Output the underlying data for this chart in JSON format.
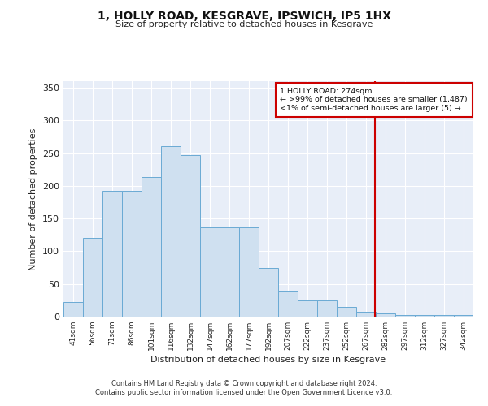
{
  "title": "1, HOLLY ROAD, KESGRAVE, IPSWICH, IP5 1HX",
  "subtitle": "Size of property relative to detached houses in Kesgrave",
  "xlabel": "Distribution of detached houses by size in Kesgrave",
  "ylabel": "Number of detached properties",
  "bar_labels": [
    "41sqm",
    "56sqm",
    "71sqm",
    "86sqm",
    "101sqm",
    "116sqm",
    "132sqm",
    "147sqm",
    "162sqm",
    "177sqm",
    "192sqm",
    "207sqm",
    "222sqm",
    "237sqm",
    "252sqm",
    "267sqm",
    "282sqm",
    "297sqm",
    "312sqm",
    "327sqm",
    "342sqm"
  ],
  "bar_values": [
    22,
    120,
    193,
    193,
    213,
    261,
    247,
    136,
    136,
    136,
    75,
    40,
    25,
    25,
    15,
    8,
    5,
    3,
    2,
    2,
    2
  ],
  "bar_color": "#cfe0f0",
  "bar_edge_color": "#6aaad4",
  "bg_color": "#e8eef8",
  "grid_color": "#ffffff",
  "annotation_line_color": "#cc0000",
  "annotation_box_text": "1 HOLLY ROAD: 274sqm\n← >99% of detached houses are smaller (1,487)\n<1% of semi-detached houses are larger (5) →",
  "ylim": [
    0,
    360
  ],
  "yticks": [
    0,
    50,
    100,
    150,
    200,
    250,
    300,
    350
  ],
  "footer_line1": "Contains HM Land Registry data © Crown copyright and database right 2024.",
  "footer_line2": "Contains public sector information licensed under the Open Government Licence v3.0."
}
